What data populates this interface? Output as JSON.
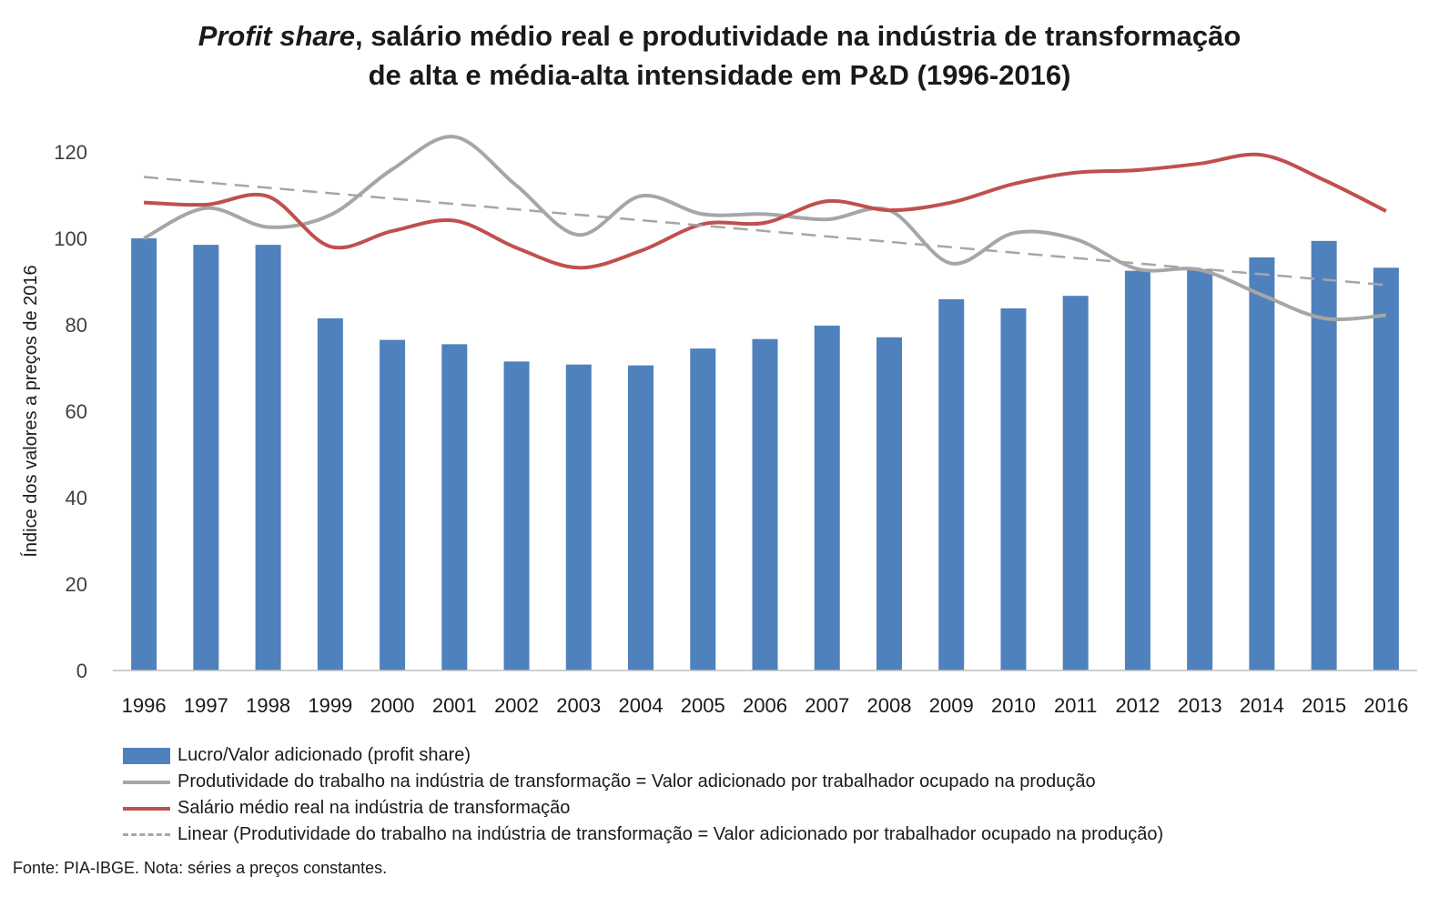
{
  "chart_data": {
    "type": "bar",
    "title_italic": "Profit share",
    "title_rest_line1": ", salário médio real e produtividade na indústria de transformação",
    "title_line2": "de alta e média-alta intensidade em P&D (1996-2016)",
    "ylabel": "Índice dos valores a preços de 2016",
    "ylim": [
      0,
      120
    ],
    "yticks": [
      "0",
      "20",
      "40",
      "60",
      "80",
      "100",
      "120"
    ],
    "categories": [
      "1996",
      "1997",
      "1998",
      "1999",
      "2000",
      "2001",
      "2002",
      "2003",
      "2004",
      "2005",
      "2006",
      "2007",
      "2008",
      "2009",
      "2010",
      "2011",
      "2012",
      "2013",
      "2014",
      "2015",
      "2016"
    ],
    "series": [
      {
        "name": "Lucro/Valor adicionado (profit share)",
        "kind": "bar",
        "color": "#4f81bd",
        "values": [
          100,
          98.5,
          98.5,
          81.5,
          76.5,
          75.5,
          71.5,
          70.8,
          70.6,
          74.5,
          76.7,
          79.8,
          77.1,
          85.9,
          83.8,
          86.7,
          92.5,
          92.9,
          95.6,
          99.4,
          93.2
        ]
      },
      {
        "name": "Produtividade do trabalho na indústria de transformação = Valor adicionado por trabalhador ocupado na produção",
        "kind": "line",
        "color": "#a6a6a6",
        "values": [
          100,
          107,
          102.6,
          105.4,
          116,
          123.5,
          112.2,
          100.8,
          109.8,
          105.6,
          105.6,
          104.4,
          106.5,
          94.2,
          101.2,
          99.8,
          92.9,
          92.7,
          86.9,
          81.5,
          82.2
        ]
      },
      {
        "name": "Salário médio real na indústria de transformação",
        "kind": "line",
        "color": "#c0504d",
        "values": [
          108.3,
          107.8,
          109.7,
          98.1,
          101.7,
          104.1,
          97.8,
          93.2,
          97.1,
          103.3,
          103.6,
          108.6,
          106.5,
          108.3,
          112.6,
          115.2,
          115.8,
          117.3,
          119.3,
          113.5,
          106.3
        ]
      },
      {
        "name": "Linear (Produtividade do trabalho na indústria de transformação = Valor adicionado por trabalhador ocupado na produção)",
        "kind": "trend",
        "color": "#a6a6a6",
        "values": [
          114.2,
          113.0,
          111.8,
          110.5,
          109.3,
          108.1,
          106.9,
          105.6,
          104.4,
          103.2,
          102.0,
          100.7,
          99.5,
          98.3,
          97.1,
          95.8,
          94.6,
          93.4,
          92.2,
          90.9,
          89.2
        ]
      }
    ],
    "legend_position": "bottom",
    "grid": false
  },
  "footnote": "Fonte: PIA-IBGE. Nota: séries a preços constantes."
}
